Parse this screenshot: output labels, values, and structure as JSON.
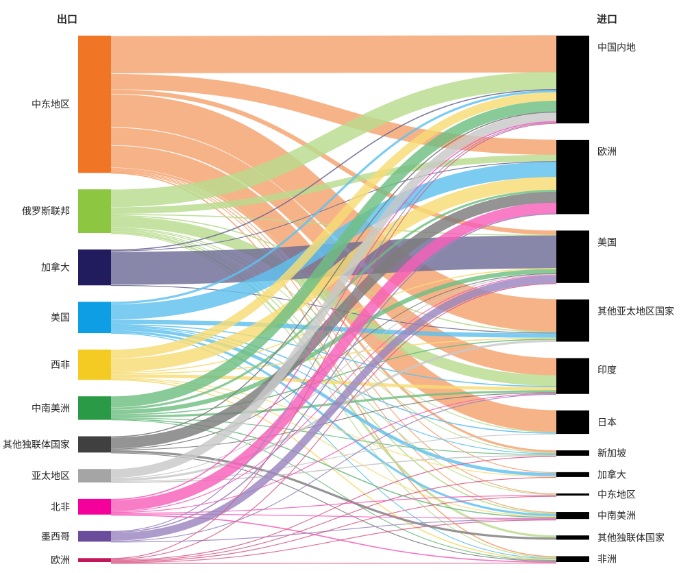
{
  "header": {
    "export_label": "出口",
    "import_label": "进口"
  },
  "chart_data": {
    "type": "sankey",
    "left_nodes": [
      {
        "id": "me",
        "label": "中东地区",
        "color": "#f07525",
        "flow_color": "#f5a26e"
      },
      {
        "id": "ru",
        "label": "俄罗斯联邦",
        "color": "#8dc641",
        "flow_color": "#b8dc8e"
      },
      {
        "id": "ca",
        "label": "加拿大",
        "color": "#211c5e",
        "flow_color": "#6f6c96"
      },
      {
        "id": "us",
        "label": "美国",
        "color": "#0d9ee3",
        "flow_color": "#5fc1ef"
      },
      {
        "id": "wa",
        "label": "西非",
        "color": "#f3cb23",
        "flow_color": "#f6dc74"
      },
      {
        "id": "sa",
        "label": "中南美洲",
        "color": "#2a9a47",
        "flow_color": "#6fbe82"
      },
      {
        "id": "cis",
        "label": "其他独联体国家",
        "color": "#404040",
        "flow_color": "#7d7d7d"
      },
      {
        "id": "ap",
        "label": "亚太地区",
        "color": "#a5a5a5",
        "flow_color": "#c8c8c8"
      },
      {
        "id": "na",
        "label": "北非",
        "color": "#f4009a",
        "flow_color": "#f65fba"
      },
      {
        "id": "mx",
        "label": "墨西哥",
        "color": "#6a4c9c",
        "flow_color": "#9b86c0"
      },
      {
        "id": "eu",
        "label": "欧洲",
        "color": "#c2185b",
        "flow_color": "#d9608c"
      }
    ],
    "right_nodes": [
      {
        "id": "cn",
        "label": "中国内地",
        "color": "#000000"
      },
      {
        "id": "eu",
        "label": "欧洲",
        "color": "#000000"
      },
      {
        "id": "us",
        "label": "美国",
        "color": "#000000"
      },
      {
        "id": "oap",
        "label": "其他亚太地区国家",
        "color": "#000000"
      },
      {
        "id": "in",
        "label": "印度",
        "color": "#000000"
      },
      {
        "id": "jp",
        "label": "日本",
        "color": "#000000"
      },
      {
        "id": "sg",
        "label": "新加坡",
        "color": "#000000"
      },
      {
        "id": "ca",
        "label": "加拿大",
        "color": "#000000"
      },
      {
        "id": "me",
        "label": "中东地区",
        "color": "#000000"
      },
      {
        "id": "sa",
        "label": "中南美洲",
        "color": "#000000"
      },
      {
        "id": "cis",
        "label": "其他独联体国家",
        "color": "#000000"
      },
      {
        "id": "af",
        "label": "非洲",
        "color": "#000000"
      }
    ],
    "flows": [
      {
        "from": "me",
        "to": "cn",
        "value": 34
      },
      {
        "from": "me",
        "to": "eu",
        "value": 14
      },
      {
        "from": "me",
        "to": "us",
        "value": 4
      },
      {
        "from": "me",
        "to": "oap",
        "value": 30
      },
      {
        "from": "me",
        "to": "in",
        "value": 16
      },
      {
        "from": "me",
        "to": "jp",
        "value": 20
      },
      {
        "from": "me",
        "to": "sg",
        "value": 2
      },
      {
        "from": "me",
        "to": "ca",
        "value": 0.5
      },
      {
        "from": "me",
        "to": "me",
        "value": 0.5
      },
      {
        "from": "me",
        "to": "sa",
        "value": 0.5
      },
      {
        "from": "me",
        "to": "af",
        "value": 1
      },
      {
        "from": "ru",
        "to": "cn",
        "value": 16
      },
      {
        "from": "ru",
        "to": "eu",
        "value": 6
      },
      {
        "from": "ru",
        "to": "us",
        "value": 1
      },
      {
        "from": "ru",
        "to": "oap",
        "value": 1
      },
      {
        "from": "ru",
        "to": "in",
        "value": 10
      },
      {
        "from": "ru",
        "to": "jp",
        "value": 0.5
      },
      {
        "from": "ru",
        "to": "sg",
        "value": 0.5
      },
      {
        "from": "ru",
        "to": "me",
        "value": 0.5
      },
      {
        "from": "ru",
        "to": "sa",
        "value": 1
      },
      {
        "from": "ru",
        "to": "cis",
        "value": 2
      },
      {
        "from": "ru",
        "to": "af",
        "value": 0.5
      },
      {
        "from": "ca",
        "to": "cn",
        "value": 1
      },
      {
        "from": "ca",
        "to": "eu",
        "value": 0.5
      },
      {
        "from": "ca",
        "to": "us",
        "value": 30
      },
      {
        "from": "ca",
        "to": "oap",
        "value": 0.5
      },
      {
        "from": "us",
        "to": "cn",
        "value": 2
      },
      {
        "from": "us",
        "to": "eu",
        "value": 14
      },
      {
        "from": "us",
        "to": "oap",
        "value": 4
      },
      {
        "from": "us",
        "to": "in",
        "value": 1
      },
      {
        "from": "us",
        "to": "jp",
        "value": 1
      },
      {
        "from": "us",
        "to": "sg",
        "value": 0.5
      },
      {
        "from": "us",
        "to": "ca",
        "value": 3
      },
      {
        "from": "us",
        "to": "sa",
        "value": 2
      },
      {
        "from": "us",
        "to": "af",
        "value": 0.5
      },
      {
        "from": "wa",
        "to": "cn",
        "value": 8
      },
      {
        "from": "wa",
        "to": "eu",
        "value": 12
      },
      {
        "from": "wa",
        "to": "us",
        "value": 1
      },
      {
        "from": "wa",
        "to": "oap",
        "value": 1
      },
      {
        "from": "wa",
        "to": "in",
        "value": 3
      },
      {
        "from": "wa",
        "to": "ca",
        "value": 0.5
      },
      {
        "from": "wa",
        "to": "sa",
        "value": 0.5
      },
      {
        "from": "wa",
        "to": "af",
        "value": 1
      },
      {
        "from": "sa",
        "to": "cn",
        "value": 10
      },
      {
        "from": "sa",
        "to": "eu",
        "value": 2
      },
      {
        "from": "sa",
        "to": "us",
        "value": 4
      },
      {
        "from": "sa",
        "to": "oap",
        "value": 1
      },
      {
        "from": "sa",
        "to": "in",
        "value": 2
      },
      {
        "from": "sa",
        "to": "sg",
        "value": 0.5
      },
      {
        "from": "sa",
        "to": "sa",
        "value": 1
      },
      {
        "from": "sa",
        "to": "af",
        "value": 0.5
      },
      {
        "from": "cis",
        "to": "cn",
        "value": 1
      },
      {
        "from": "cis",
        "to": "eu",
        "value": 10
      },
      {
        "from": "cis",
        "to": "us",
        "value": 0.5
      },
      {
        "from": "cis",
        "to": "in",
        "value": 0.5
      },
      {
        "from": "cis",
        "to": "cis",
        "value": 2
      },
      {
        "from": "cis",
        "to": "af",
        "value": 0.5
      },
      {
        "from": "ap",
        "to": "cn",
        "value": 8
      },
      {
        "from": "ap",
        "to": "us",
        "value": 0.5
      },
      {
        "from": "ap",
        "to": "oap",
        "value": 2
      },
      {
        "from": "ap",
        "to": "jp",
        "value": 0.5
      },
      {
        "from": "ap",
        "to": "sg",
        "value": 1
      },
      {
        "from": "na",
        "to": "cn",
        "value": 1
      },
      {
        "from": "na",
        "to": "eu",
        "value": 10
      },
      {
        "from": "na",
        "to": "us",
        "value": 0.5
      },
      {
        "from": "na",
        "to": "in",
        "value": 0.5
      },
      {
        "from": "na",
        "to": "me",
        "value": 0.5
      },
      {
        "from": "na",
        "to": "sa",
        "value": 0.5
      },
      {
        "from": "na",
        "to": "af",
        "value": 1
      },
      {
        "from": "mx",
        "to": "cn",
        "value": 0.5
      },
      {
        "from": "mx",
        "to": "eu",
        "value": 1
      },
      {
        "from": "mx",
        "to": "us",
        "value": 7
      },
      {
        "from": "mx",
        "to": "in",
        "value": 0.5
      },
      {
        "from": "mx",
        "to": "sa",
        "value": 0.5
      },
      {
        "from": "eu",
        "to": "cn",
        "value": 0.5
      },
      {
        "from": "eu",
        "to": "us",
        "value": 0.5
      },
      {
        "from": "eu",
        "to": "sg",
        "value": 0.5
      },
      {
        "from": "eu",
        "to": "ca",
        "value": 0.5
      },
      {
        "from": "eu",
        "to": "me",
        "value": 0.5
      },
      {
        "from": "eu",
        "to": "sa",
        "value": 0.5
      },
      {
        "from": "eu",
        "to": "af",
        "value": 0.5
      }
    ]
  }
}
